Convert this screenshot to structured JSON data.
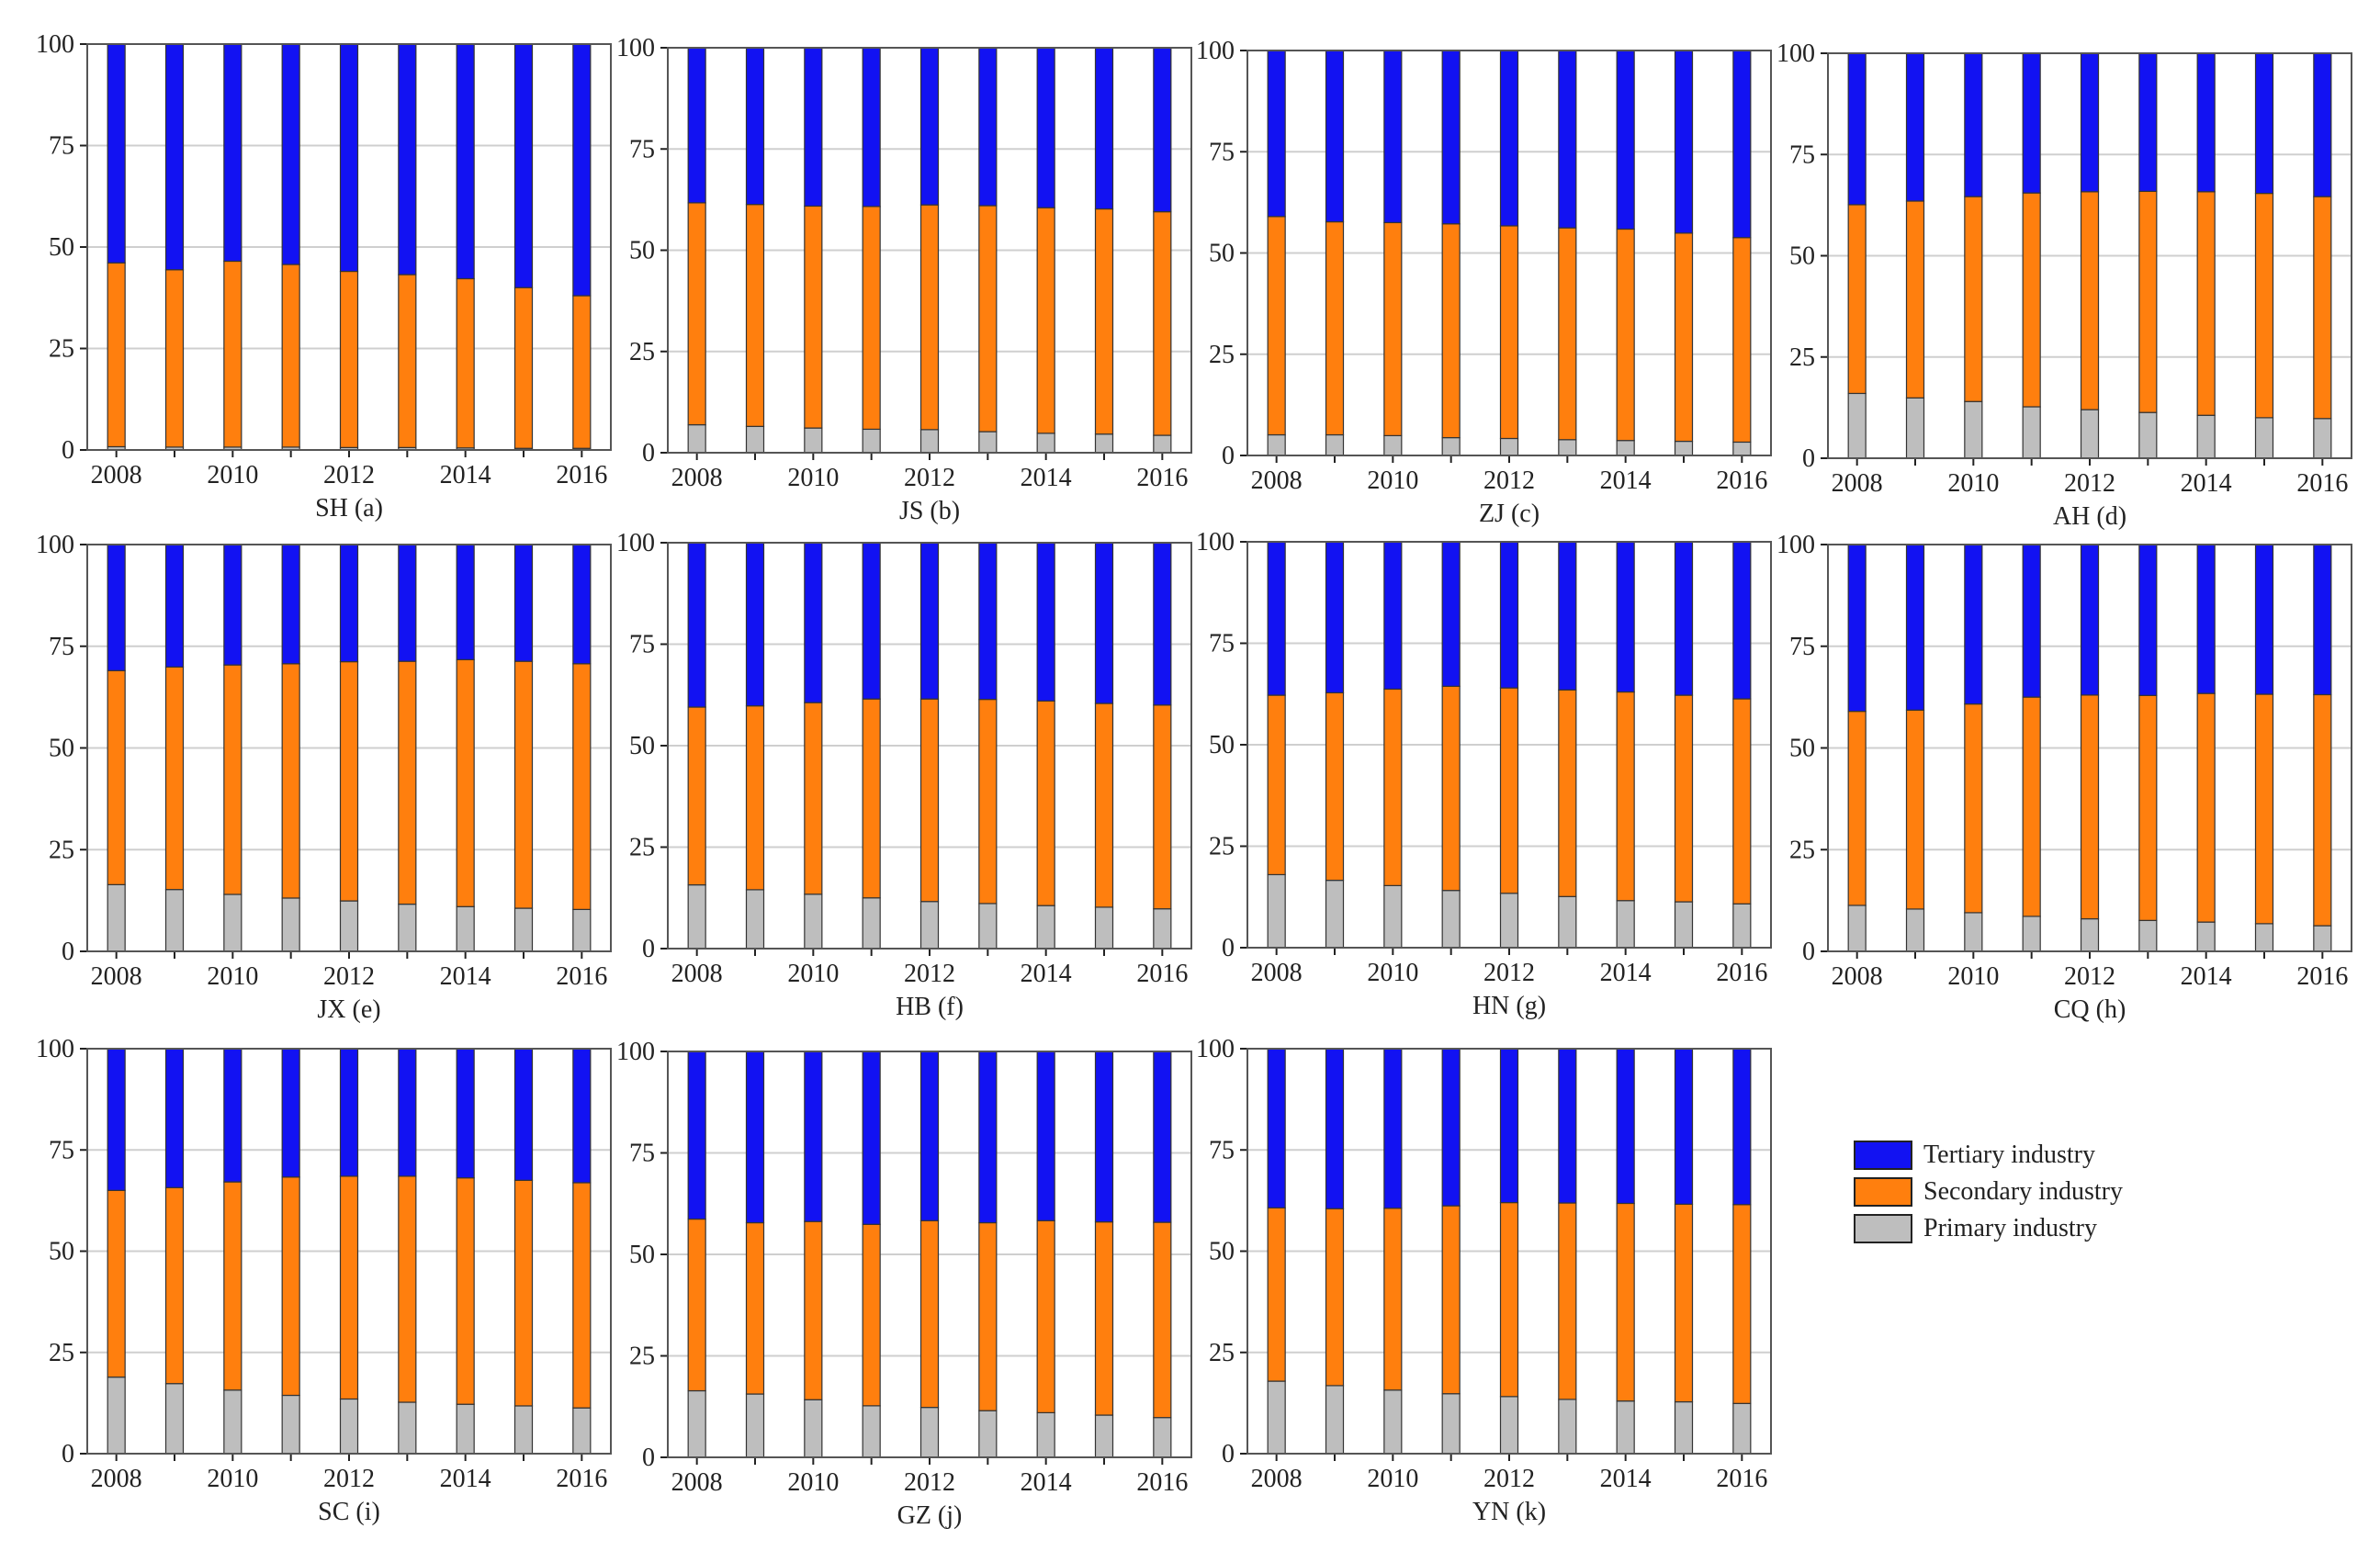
{
  "colors": {
    "tertiary": "#1212F2",
    "secondary": "#FF7F0E",
    "primary": "#BEBEBE",
    "grid": "#CFCFCF",
    "axis": "#222222"
  },
  "legend": {
    "items": [
      {
        "label": "Tertiary industry",
        "color": "#1212F2"
      },
      {
        "label": "Secondary industry",
        "color": "#FF7F0E"
      },
      {
        "label": "Primary industry",
        "color": "#BEBEBE"
      }
    ]
  },
  "chart_data": [
    {
      "type": "bar",
      "stacked": true,
      "title": "SH (a)",
      "categories": [
        "2008",
        "2009",
        "2010",
        "2011",
        "2012",
        "2013",
        "2014",
        "2015",
        "2016"
      ],
      "x_tick_labels": [
        "2008",
        "2010",
        "2012",
        "2014",
        "2016"
      ],
      "y_ticks": [
        0,
        25,
        50,
        75,
        100
      ],
      "ylim": [
        0,
        100
      ],
      "series": [
        {
          "name": "Primary industry",
          "values": [
            0.8,
            0.7,
            0.7,
            0.7,
            0.6,
            0.6,
            0.5,
            0.4,
            0.4
          ]
        },
        {
          "name": "Secondary industry",
          "values": [
            45.3,
            43.7,
            45.8,
            45.0,
            43.4,
            42.6,
            41.7,
            39.6,
            37.6
          ]
        },
        {
          "name": "Tertiary industry",
          "values": [
            53.9,
            55.6,
            53.5,
            54.3,
            56.0,
            56.8,
            57.8,
            60.0,
            62.0
          ]
        }
      ]
    },
    {
      "type": "bar",
      "stacked": true,
      "title": "JS (b)",
      "categories": [
        "2008",
        "2009",
        "2010",
        "2011",
        "2012",
        "2013",
        "2014",
        "2015",
        "2016"
      ],
      "x_tick_labels": [
        "2008",
        "2010",
        "2012",
        "2014",
        "2016"
      ],
      "y_ticks": [
        0,
        25,
        50,
        75,
        100
      ],
      "ylim": [
        0,
        100
      ],
      "series": [
        {
          "name": "Primary industry",
          "values": [
            6.9,
            6.5,
            6.1,
            5.8,
            5.7,
            5.2,
            4.8,
            4.6,
            4.3
          ]
        },
        {
          "name": "Secondary industry",
          "values": [
            54.8,
            54.8,
            54.8,
            55.0,
            55.5,
            55.8,
            55.7,
            55.6,
            55.2
          ]
        },
        {
          "name": "Tertiary industry",
          "values": [
            38.3,
            38.7,
            39.1,
            39.2,
            38.8,
            39.0,
            39.5,
            39.8,
            40.5
          ]
        }
      ]
    },
    {
      "type": "bar",
      "stacked": true,
      "title": "ZJ (c)",
      "categories": [
        "2008",
        "2009",
        "2010",
        "2011",
        "2012",
        "2013",
        "2014",
        "2015",
        "2016"
      ],
      "x_tick_labels": [
        "2008",
        "2010",
        "2012",
        "2014",
        "2016"
      ],
      "y_ticks": [
        0,
        25,
        50,
        75,
        100
      ],
      "ylim": [
        0,
        100
      ],
      "series": [
        {
          "name": "Primary industry",
          "values": [
            5.1,
            5.1,
            4.9,
            4.4,
            4.2,
            3.9,
            3.7,
            3.5,
            3.3
          ]
        },
        {
          "name": "Secondary industry",
          "values": [
            53.9,
            52.6,
            52.6,
            52.8,
            52.5,
            52.3,
            52.2,
            51.4,
            50.5
          ]
        },
        {
          "name": "Tertiary industry",
          "values": [
            41.0,
            42.3,
            42.5,
            42.8,
            43.3,
            43.8,
            44.1,
            45.1,
            46.2
          ]
        }
      ]
    },
    {
      "type": "bar",
      "stacked": true,
      "title": "AH (d)",
      "categories": [
        "2008",
        "2009",
        "2010",
        "2011",
        "2012",
        "2013",
        "2014",
        "2015",
        "2016"
      ],
      "x_tick_labels": [
        "2008",
        "2010",
        "2012",
        "2014",
        "2016"
      ],
      "y_ticks": [
        0,
        25,
        50,
        75,
        100
      ],
      "ylim": [
        0,
        100
      ],
      "series": [
        {
          "name": "Primary industry",
          "values": [
            16.0,
            14.9,
            14.0,
            12.7,
            12.0,
            11.3,
            10.6,
            10.0,
            9.8
          ]
        },
        {
          "name": "Secondary industry",
          "values": [
            46.6,
            48.6,
            50.6,
            52.8,
            53.8,
            54.6,
            55.2,
            55.4,
            54.8
          ]
        },
        {
          "name": "Tertiary industry",
          "values": [
            37.4,
            36.5,
            35.4,
            34.5,
            34.2,
            34.1,
            34.2,
            34.6,
            35.4
          ]
        }
      ]
    },
    {
      "type": "bar",
      "stacked": true,
      "title": "JX (e)",
      "categories": [
        "2008",
        "2009",
        "2010",
        "2011",
        "2012",
        "2013",
        "2014",
        "2015",
        "2016"
      ],
      "x_tick_labels": [
        "2008",
        "2010",
        "2012",
        "2014",
        "2016"
      ],
      "y_ticks": [
        0,
        25,
        50,
        75,
        100
      ],
      "ylim": [
        0,
        100
      ],
      "series": [
        {
          "name": "Primary industry",
          "values": [
            16.4,
            15.2,
            14.0,
            13.1,
            12.4,
            11.6,
            11.0,
            10.6,
            10.3
          ]
        },
        {
          "name": "Secondary industry",
          "values": [
            52.6,
            54.7,
            56.4,
            57.6,
            58.8,
            59.7,
            60.7,
            60.7,
            60.4
          ]
        },
        {
          "name": "Tertiary industry",
          "values": [
            31.0,
            30.1,
            29.6,
            29.3,
            28.8,
            28.7,
            28.3,
            28.7,
            29.3
          ]
        }
      ]
    },
    {
      "type": "bar",
      "stacked": true,
      "title": "HB (f)",
      "categories": [
        "2008",
        "2009",
        "2010",
        "2011",
        "2012",
        "2013",
        "2014",
        "2015",
        "2016"
      ],
      "x_tick_labels": [
        "2008",
        "2010",
        "2012",
        "2014",
        "2016"
      ],
      "y_ticks": [
        0,
        25,
        50,
        75,
        100
      ],
      "ylim": [
        0,
        100
      ],
      "series": [
        {
          "name": "Primary industry",
          "values": [
            15.7,
            14.5,
            13.4,
            12.5,
            11.6,
            11.1,
            10.6,
            10.2,
            9.8
          ]
        },
        {
          "name": "Secondary industry",
          "values": [
            43.8,
            45.3,
            47.2,
            49.0,
            49.9,
            50.3,
            50.4,
            50.2,
            50.2
          ]
        },
        {
          "name": "Tertiary industry",
          "values": [
            40.5,
            40.2,
            39.4,
            38.5,
            38.5,
            38.6,
            39.0,
            39.6,
            40.0
          ]
        }
      ]
    },
    {
      "type": "bar",
      "stacked": true,
      "title": "HN (g)",
      "categories": [
        "2008",
        "2009",
        "2010",
        "2011",
        "2012",
        "2013",
        "2014",
        "2015",
        "2016"
      ],
      "x_tick_labels": [
        "2008",
        "2010",
        "2012",
        "2014",
        "2016"
      ],
      "y_ticks": [
        0,
        25,
        50,
        75,
        100
      ],
      "ylim": [
        0,
        100
      ],
      "series": [
        {
          "name": "Primary industry",
          "values": [
            18.0,
            16.6,
            15.3,
            14.1,
            13.4,
            12.6,
            11.6,
            11.3,
            10.8
          ]
        },
        {
          "name": "Secondary industry",
          "values": [
            44.2,
            46.2,
            48.4,
            50.3,
            50.6,
            50.9,
            51.4,
            50.9,
            50.5
          ]
        },
        {
          "name": "Tertiary industry",
          "values": [
            37.8,
            37.2,
            36.3,
            35.6,
            36.0,
            36.5,
            37.0,
            37.8,
            38.7
          ]
        }
      ]
    },
    {
      "type": "bar",
      "stacked": true,
      "title": "CQ (h)",
      "categories": [
        "2008",
        "2009",
        "2010",
        "2011",
        "2012",
        "2013",
        "2014",
        "2015",
        "2016"
      ],
      "x_tick_labels": [
        "2008",
        "2010",
        "2012",
        "2014",
        "2016"
      ],
      "y_ticks": [
        0,
        25,
        50,
        75,
        100
      ],
      "ylim": [
        0,
        100
      ],
      "series": [
        {
          "name": "Primary industry",
          "values": [
            11.3,
            10.4,
            9.5,
            8.6,
            8.0,
            7.6,
            7.2,
            6.8,
            6.3
          ]
        },
        {
          "name": "Secondary industry",
          "values": [
            47.7,
            48.9,
            51.3,
            53.9,
            55.0,
            55.3,
            56.2,
            56.4,
            56.8
          ]
        },
        {
          "name": "Tertiary industry",
          "values": [
            41.0,
            40.7,
            39.2,
            37.5,
            37.0,
            37.1,
            36.6,
            36.8,
            36.9
          ]
        }
      ]
    },
    {
      "type": "bar",
      "stacked": true,
      "title": "SC (i)",
      "categories": [
        "2008",
        "2009",
        "2010",
        "2011",
        "2012",
        "2013",
        "2014",
        "2015",
        "2016"
      ],
      "x_tick_labels": [
        "2008",
        "2010",
        "2012",
        "2014",
        "2016"
      ],
      "y_ticks": [
        0,
        25,
        50,
        75,
        100
      ],
      "ylim": [
        0,
        100
      ],
      "series": [
        {
          "name": "Primary industry",
          "values": [
            18.9,
            17.3,
            15.7,
            14.4,
            13.5,
            12.7,
            12.2,
            11.8,
            11.3
          ]
        },
        {
          "name": "Secondary industry",
          "values": [
            46.1,
            48.4,
            51.4,
            53.9,
            55.0,
            55.8,
            55.9,
            55.7,
            55.6
          ]
        },
        {
          "name": "Tertiary industry",
          "values": [
            35.0,
            34.3,
            32.9,
            31.7,
            31.5,
            31.5,
            31.9,
            32.5,
            33.1
          ]
        }
      ]
    },
    {
      "type": "bar",
      "stacked": true,
      "title": "GZ (j)",
      "categories": [
        "2008",
        "2009",
        "2010",
        "2011",
        "2012",
        "2013",
        "2014",
        "2015",
        "2016"
      ],
      "x_tick_labels": [
        "2008",
        "2010",
        "2012",
        "2014",
        "2016"
      ],
      "y_ticks": [
        0,
        25,
        50,
        75,
        100
      ],
      "ylim": [
        0,
        100
      ],
      "series": [
        {
          "name": "Primary industry",
          "values": [
            16.4,
            15.6,
            14.2,
            12.7,
            12.3,
            11.5,
            11.0,
            10.4,
            9.8
          ]
        },
        {
          "name": "Secondary industry",
          "values": [
            42.3,
            42.2,
            43.9,
            44.7,
            46.0,
            46.3,
            47.3,
            47.6,
            48.1
          ]
        },
        {
          "name": "Tertiary industry",
          "values": [
            41.3,
            42.2,
            41.9,
            42.6,
            41.7,
            42.2,
            41.7,
            42.0,
            42.1
          ]
        }
      ]
    },
    {
      "type": "bar",
      "stacked": true,
      "title": "YN (k)",
      "categories": [
        "2008",
        "2009",
        "2010",
        "2011",
        "2012",
        "2013",
        "2014",
        "2015",
        "2016"
      ],
      "x_tick_labels": [
        "2008",
        "2010",
        "2012",
        "2014",
        "2016"
      ],
      "y_ticks": [
        0,
        25,
        50,
        75,
        100
      ],
      "ylim": [
        0,
        100
      ],
      "series": [
        {
          "name": "Primary industry",
          "values": [
            17.9,
            16.8,
            15.7,
            14.8,
            14.1,
            13.4,
            13.0,
            12.8,
            12.4
          ]
        },
        {
          "name": "Secondary industry",
          "values": [
            42.8,
            43.7,
            44.9,
            46.4,
            47.9,
            48.5,
            48.8,
            48.8,
            49.1
          ]
        },
        {
          "name": "Tertiary industry",
          "values": [
            39.3,
            39.5,
            39.4,
            38.8,
            38.0,
            38.1,
            38.2,
            38.4,
            38.5
          ]
        }
      ]
    }
  ]
}
